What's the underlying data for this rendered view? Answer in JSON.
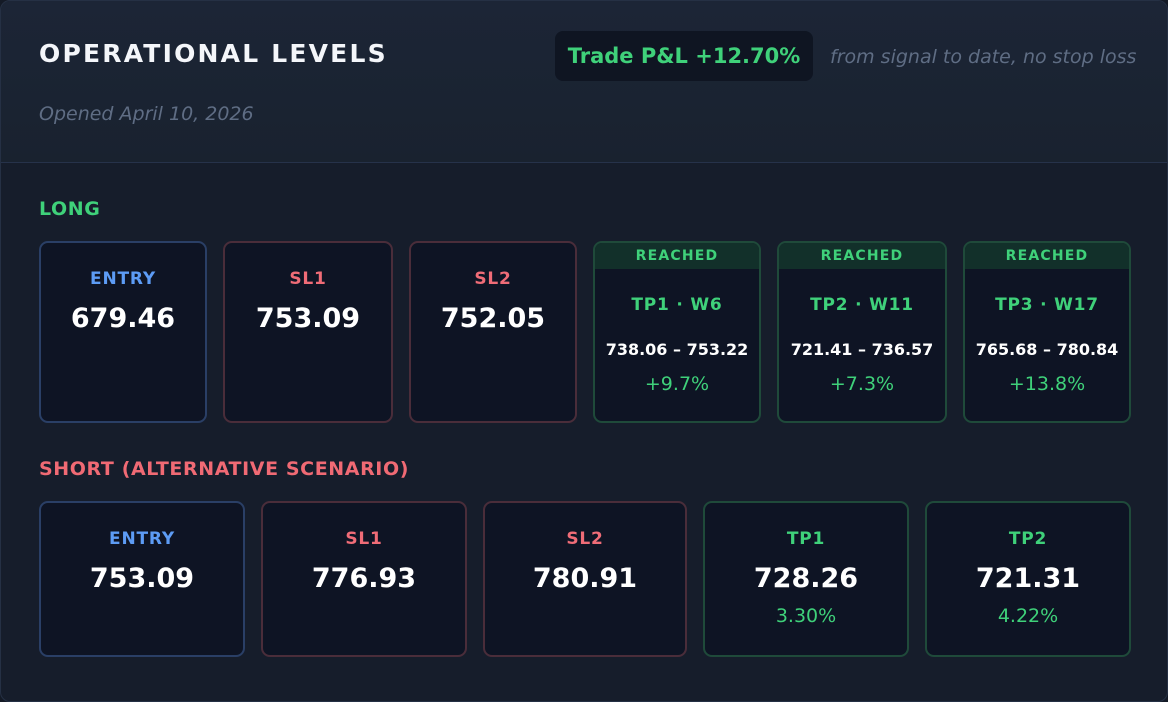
{
  "header": {
    "title": "OPERATIONAL LEVELS",
    "opened": "Opened April 10, 2026",
    "pnl_badge": "Trade P&L +12.70%",
    "pnl_note": "from signal to date, no stop loss"
  },
  "long": {
    "label": "LONG",
    "entry": {
      "label": "ENTRY",
      "value": "679.46"
    },
    "sl1": {
      "label": "SL1",
      "value": "753.09"
    },
    "sl2": {
      "label": "SL2",
      "value": "752.05"
    },
    "tps": [
      {
        "status": "REACHED",
        "label": "TP1 · W6",
        "range": "738.06 – 753.22",
        "pct": "+9.7%"
      },
      {
        "status": "REACHED",
        "label": "TP2 · W11",
        "range": "721.41 – 736.57",
        "pct": "+7.3%"
      },
      {
        "status": "REACHED",
        "label": "TP3 · W17",
        "range": "765.68 – 780.84",
        "pct": "+13.8%"
      }
    ]
  },
  "short": {
    "label": "SHORT (ALTERNATIVE SCENARIO)",
    "entry": {
      "label": "ENTRY",
      "value": "753.09"
    },
    "sl1": {
      "label": "SL1",
      "value": "776.93"
    },
    "sl2": {
      "label": "SL2",
      "value": "780.91"
    },
    "tp1": {
      "label": "TP1",
      "value": "728.26",
      "pct": "3.30%"
    },
    "tp2": {
      "label": "TP2",
      "value": "721.31",
      "pct": "4.22%"
    }
  },
  "colors": {
    "green": "#3fd17a",
    "red": "#f06a74",
    "blue": "#5d9cf5",
    "background": "#161d2b"
  }
}
